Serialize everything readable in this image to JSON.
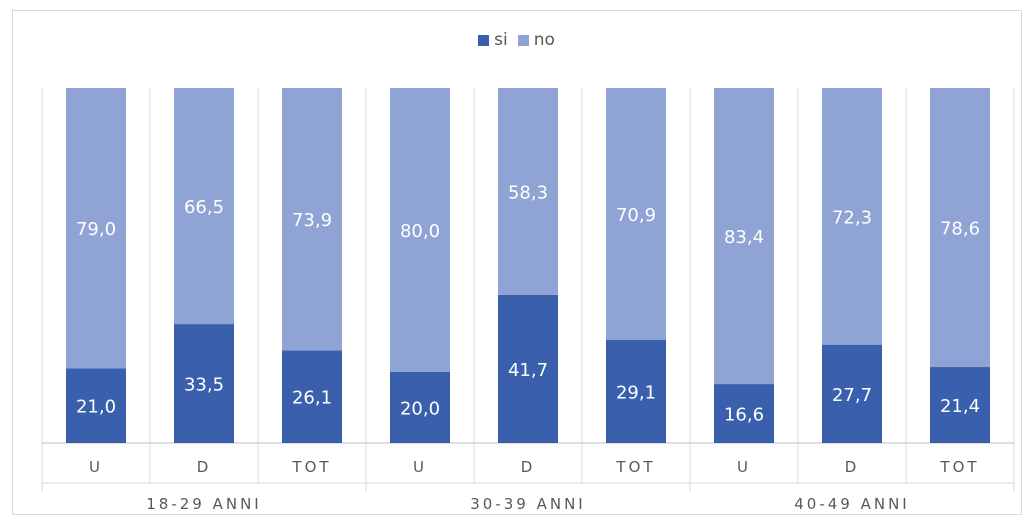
{
  "chart_data": {
    "type": "bar",
    "stacked": true,
    "percent": true,
    "groups": [
      {
        "label": "18-29 ANNI",
        "categories": [
          "U",
          "D",
          "TOT"
        ]
      },
      {
        "label": "30-39 ANNI",
        "categories": [
          "U",
          "D",
          "TOT"
        ]
      },
      {
        "label": "40-49 ANNI",
        "categories": [
          "U",
          "D",
          "TOT"
        ]
      }
    ],
    "categories": [
      "U",
      "D",
      "TOT",
      "U",
      "D",
      "TOT",
      "U",
      "D",
      "TOT"
    ],
    "series": [
      {
        "name": "si",
        "color": "#3a60ad",
        "values": [
          21.0,
          33.5,
          26.1,
          20.0,
          41.7,
          29.1,
          16.6,
          27.7,
          21.4
        ],
        "labels": [
          "21,0",
          "33,5",
          "26,1",
          "20,0",
          "41,7",
          "29,1",
          "16,6",
          "27,7",
          "21,4"
        ]
      },
      {
        "name": "no",
        "color": "#8fa3d4",
        "values": [
          79.0,
          66.5,
          73.9,
          80.0,
          58.3,
          70.9,
          83.4,
          72.3,
          78.6
        ],
        "labels": [
          "79,0",
          "66,5",
          "73,9",
          "80,0",
          "58,3",
          "70,9",
          "83,4",
          "72,3",
          "78,6"
        ]
      }
    ],
    "ylim": [
      0,
      100
    ],
    "legend_position": "top",
    "grid": false
  },
  "legend": {
    "items": [
      {
        "label": "si",
        "color": "#3a60ad"
      },
      {
        "label": "no",
        "color": "#8fa3d4"
      }
    ]
  }
}
